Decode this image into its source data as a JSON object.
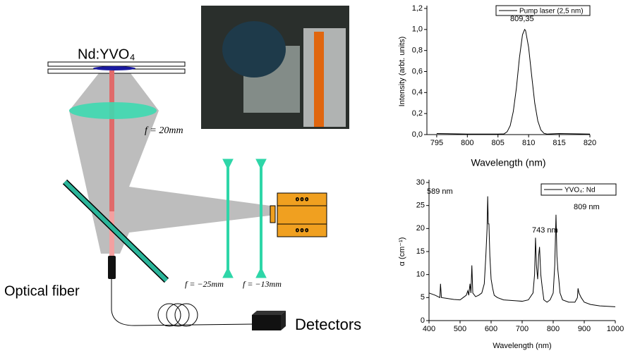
{
  "diagram": {
    "crystal": "Nd:YVO₄",
    "lens1": "f = 20mm",
    "lens2": "f = −25mm",
    "lens3": "f = −13mm",
    "fiber": "Optical fiber",
    "detectors": "Detectors"
  },
  "chart_data": [
    {
      "type": "line",
      "xlabel": "Wavelength (nm)",
      "ylabel": "Intensity (arbt. units)",
      "x": [
        795,
        800,
        805,
        806,
        806.5,
        807,
        807.5,
        808,
        808.5,
        809,
        809.35,
        809.5,
        810,
        810.5,
        811,
        811.5,
        812,
        812.5,
        813,
        815,
        820
      ],
      "series": [
        {
          "name": "Pump laser (2,5 nm)",
          "color": "#000000",
          "values": [
            0.01,
            0.005,
            0.005,
            0.007,
            0.027,
            0.086,
            0.22,
            0.44,
            0.73,
            0.95,
            1.0,
            0.99,
            0.83,
            0.56,
            0.3,
            0.13,
            0.044,
            0.012,
            0.005,
            0.01,
            0.005
          ]
        }
      ],
      "annotations": [
        "809,35"
      ],
      "xlim": [
        793.4,
        820
      ],
      "xticks": [
        795,
        800,
        805,
        810,
        815,
        820
      ],
      "ylim": [
        0,
        1.2
      ],
      "yticks": [
        {
          "value": 0,
          "label": "0,0"
        },
        {
          "value": 0.2,
          "label": "0,2"
        },
        {
          "value": 0.4,
          "label": "0,4"
        },
        {
          "value": 0.6,
          "label": "0,6"
        },
        {
          "value": 0.8,
          "label": "0,8"
        },
        {
          "value": 1.0,
          "label": "1,0"
        },
        {
          "value": 1.2,
          "label": "1,2"
        }
      ],
      "legend": "upper right"
    },
    {
      "type": "line",
      "xlabel": "Wavelength (nm)",
      "ylabel": "α (cm⁻¹)",
      "x": [
        400,
        420,
        435,
        437,
        440,
        460,
        480,
        500,
        510,
        520,
        525,
        528,
        532,
        535,
        538,
        541,
        550,
        560,
        570,
        578,
        583,
        587,
        589,
        591,
        593,
        596,
        600,
        605,
        610,
        620,
        640,
        660,
        680,
        700,
        720,
        735,
        740,
        743,
        746,
        750,
        753,
        756,
        760,
        765,
        770,
        780,
        790,
        800,
        805,
        809,
        812,
        815,
        818,
        822,
        830,
        850,
        870,
        878,
        880,
        883,
        890,
        900,
        920,
        950,
        1000
      ],
      "series": [
        {
          "name": "YVO₄: Nd",
          "color": "#000000",
          "values": [
            6,
            5.5,
            5,
            8,
            5,
            4.8,
            4.6,
            4.5,
            5,
            5.5,
            6.5,
            5.5,
            8,
            6,
            12,
            6,
            5.2,
            5.5,
            6,
            8,
            14,
            20,
            27,
            21,
            21,
            14,
            9,
            7,
            5.5,
            5,
            4.5,
            4.4,
            4.3,
            4.2,
            4.5,
            6,
            10,
            18,
            12,
            9,
            14,
            16,
            10,
            7,
            4.5,
            4,
            4.5,
            6,
            12,
            23,
            14,
            11,
            9,
            6,
            4.5,
            4,
            4,
            5,
            7,
            6,
            5,
            4,
            3.5,
            3.2,
            3
          ]
        }
      ],
      "annotations": [
        "589 nm",
        "743 nm",
        "809 nm"
      ],
      "xlim": [
        400,
        1000
      ],
      "xticks": [
        400,
        500,
        600,
        700,
        800,
        900,
        1000
      ],
      "ylim": [
        0,
        30
      ],
      "yticks": [
        0,
        5,
        10,
        15,
        20,
        25,
        30
      ],
      "legend": "upper right"
    }
  ]
}
